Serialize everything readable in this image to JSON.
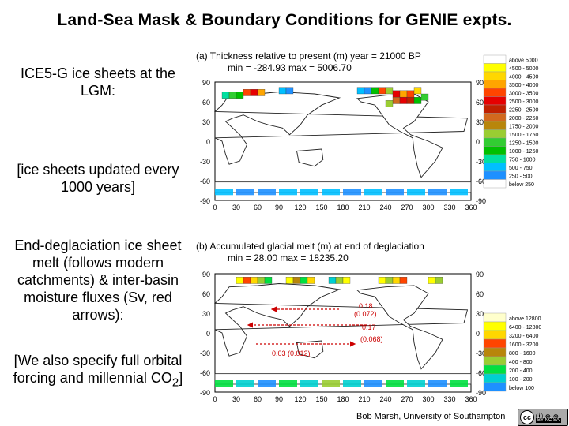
{
  "title": "Land-Sea Mask & Boundary Conditions for GENIE expts.",
  "left_text": {
    "p1": "ICE5-G ice sheets at the LGM:",
    "p2": "[ice sheets updated every 1000 years]",
    "p3": "End-deglaciation ice sheet melt (follows modern catchments) & inter-basin moisture fluxes (Sv, red arrows):",
    "p4_a": "[We also specify full orbital forcing and millennial CO",
    "p4_sub": "2",
    "p4_b": "]"
  },
  "panel_a": {
    "heading": "(a) Thickness relative to present (m)   year =  21000 BP",
    "stats": "min =  -284.93   max =  5006.70",
    "legend": [
      "above 5000",
      "4500 - 5000",
      "4000 - 4500",
      "3500 - 4000",
      "3000 - 3500",
      "2500 - 3000",
      "2250 - 2500",
      "2000 - 2250",
      "1750 - 2000",
      "1500 - 1750",
      "1250 - 1500",
      "1000 - 1250",
      "750 - 1000",
      "500 - 750",
      "250 - 500",
      "below 250"
    ],
    "legend_colors": [
      "#ffffff",
      "#ffff00",
      "#ffd700",
      "#ffa500",
      "#ff4500",
      "#e60000",
      "#c02000",
      "#d2691e",
      "#b8860b",
      "#9acd32",
      "#32cd32",
      "#00c000",
      "#00e0a0",
      "#00bfff",
      "#1e90ff",
      "#ffffff"
    ]
  },
  "panel_b": {
    "heading": "(b) Accumulated glacial melt (m) at end of deglaciation",
    "stats": "min =    28.00   max = 18235.20",
    "legend": [
      "above 12800",
      "6400 - 12800",
      "3200 - 6400",
      "1600 - 3200",
      "800 - 1600",
      "400 - 800",
      "200 - 400",
      "100 - 200",
      "below 100"
    ],
    "legend_colors": [
      "#ffffcc",
      "#ffff00",
      "#ffd700",
      "#ff4500",
      "#b8860b",
      "#9acd32",
      "#00e040",
      "#00d0d0",
      "#1e90ff"
    ],
    "fluxes": [
      {
        "label": "0.18",
        "sub": "(0.072)"
      },
      {
        "label": "0.17",
        "sub": "(0.068)"
      },
      {
        "label": "0.03 (0.012)"
      }
    ]
  },
  "axes": {
    "lat_ticks": [
      "90",
      "60",
      "30",
      "0",
      "-30",
      "-60",
      "-90"
    ],
    "lon_ticks": [
      "0",
      "30",
      "60",
      "90",
      "120",
      "150",
      "180",
      "210",
      "240",
      "270",
      "300",
      "330",
      "360"
    ]
  },
  "credit": "Bob Marsh, University of Southampton",
  "license": {
    "cc": "cc",
    "icons": "BY NC SA"
  },
  "colors": {
    "flux_arrow": "#cc0000"
  }
}
